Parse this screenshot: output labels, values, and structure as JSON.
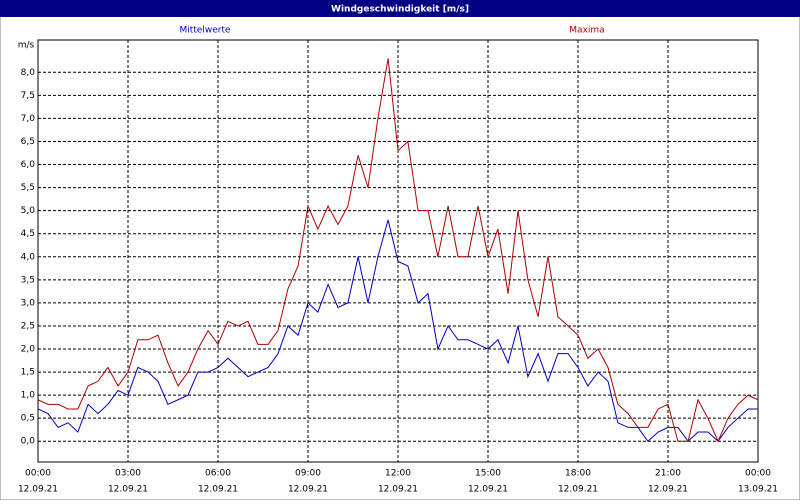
{
  "chart_data": {
    "type": "line",
    "title": "Windgeschwindigkeit [m/s]",
    "y_label": "m/s",
    "x": [
      0,
      0.33,
      0.67,
      1,
      1.33,
      1.67,
      2,
      2.33,
      2.67,
      3,
      3.33,
      3.67,
      4,
      4.33,
      4.67,
      5,
      5.33,
      5.67,
      6,
      6.33,
      6.67,
      7,
      7.33,
      7.67,
      8,
      8.33,
      8.67,
      9,
      9.33,
      9.67,
      10,
      10.33,
      10.67,
      11,
      11.33,
      11.67,
      12,
      12.33,
      12.67,
      13,
      13.33,
      13.67,
      14,
      14.33,
      14.67,
      15,
      15.33,
      15.67,
      16,
      16.33,
      16.67,
      17,
      17.33,
      17.67,
      18,
      18.33,
      18.67,
      19,
      19.33,
      19.67,
      20,
      20.33,
      20.67,
      21,
      21.33,
      21.67,
      22,
      22.33,
      22.67,
      23,
      23.33,
      23.67,
      24
    ],
    "series": [
      {
        "name": "Mittelwerte",
        "color": "#0000c0",
        "values": [
          0.7,
          0.6,
          0.3,
          0.4,
          0.2,
          0.8,
          0.6,
          0.8,
          1.1,
          1.0,
          1.6,
          1.5,
          1.3,
          0.8,
          0.9,
          1.0,
          1.5,
          1.5,
          1.6,
          1.8,
          1.6,
          1.4,
          1.5,
          1.6,
          1.9,
          2.5,
          2.3,
          3.0,
          2.8,
          3.4,
          2.9,
          3.0,
          4.0,
          3.0,
          4.0,
          4.8,
          3.9,
          3.8,
          3.0,
          3.2,
          2.0,
          2.5,
          2.2,
          2.2,
          2.1,
          2.0,
          2.2,
          1.7,
          2.5,
          1.4,
          1.9,
          1.3,
          1.9,
          1.9,
          1.6,
          1.2,
          1.5,
          1.3,
          0.4,
          0.3,
          0.3,
          0.0,
          0.2,
          0.3,
          0.3,
          0.0,
          0.2,
          0.2,
          0.0,
          0.3,
          0.5,
          0.7,
          0.7
        ]
      },
      {
        "name": "Maxima",
        "color": "#b00000",
        "values": [
          0.9,
          0.8,
          0.8,
          0.7,
          0.7,
          1.2,
          1.3,
          1.6,
          1.2,
          1.5,
          2.2,
          2.2,
          2.3,
          1.7,
          1.2,
          1.5,
          2.0,
          2.4,
          2.1,
          2.6,
          2.5,
          2.6,
          2.1,
          2.1,
          2.4,
          3.3,
          3.8,
          5.1,
          4.6,
          5.1,
          4.7,
          5.1,
          6.2,
          5.5,
          7.0,
          8.3,
          6.3,
          6.5,
          5.0,
          5.0,
          4.0,
          5.1,
          4.0,
          4.0,
          5.1,
          4.0,
          4.6,
          3.2,
          5.0,
          3.5,
          2.7,
          4.0,
          2.7,
          2.5,
          2.3,
          1.8,
          2.0,
          1.6,
          0.8,
          0.6,
          0.3,
          0.3,
          0.7,
          0.8,
          0.0,
          0.0,
          0.9,
          0.5,
          0.0,
          0.5,
          0.8,
          1.0,
          0.9
        ]
      }
    ],
    "xlim": [
      0,
      24
    ],
    "ylim": [
      -0.45,
      8.7
    ],
    "xticks": [
      {
        "value": 0,
        "label": "00:00"
      },
      {
        "value": 3,
        "label": "03:00"
      },
      {
        "value": 6,
        "label": "06:00"
      },
      {
        "value": 9,
        "label": "09:00"
      },
      {
        "value": 12,
        "label": "12:00"
      },
      {
        "value": 15,
        "label": "15:00"
      },
      {
        "value": 18,
        "label": "18:00"
      },
      {
        "value": 21,
        "label": "21:00"
      },
      {
        "value": 24,
        "label": "00:00"
      }
    ],
    "xtick_dates": [
      "12.09.21",
      "12.09.21",
      "12.09.21",
      "12.09.21",
      "12.09.21",
      "12.09.21",
      "12.09.21",
      "12.09.21",
      "13.09.21"
    ],
    "yticks": [
      {
        "value": 0,
        "label": "0,0"
      },
      {
        "value": 0.5,
        "label": "0,5"
      },
      {
        "value": 1,
        "label": "1,0"
      },
      {
        "value": 1.5,
        "label": "1,5"
      },
      {
        "value": 2,
        "label": "2,0"
      },
      {
        "value": 2.5,
        "label": "2,5"
      },
      {
        "value": 3,
        "label": "3,0"
      },
      {
        "value": 3.5,
        "label": "3,5"
      },
      {
        "value": 4,
        "label": "4,0"
      },
      {
        "value": 4.5,
        "label": "4,5"
      },
      {
        "value": 5,
        "label": "5,0"
      },
      {
        "value": 5.5,
        "label": "5,5"
      },
      {
        "value": 6,
        "label": "6,0"
      },
      {
        "value": 6.5,
        "label": "6,5"
      },
      {
        "value": 7,
        "label": "7,0"
      },
      {
        "value": 7.5,
        "label": "7,5"
      },
      {
        "value": 8,
        "label": "8,0"
      }
    ],
    "grid": true
  }
}
